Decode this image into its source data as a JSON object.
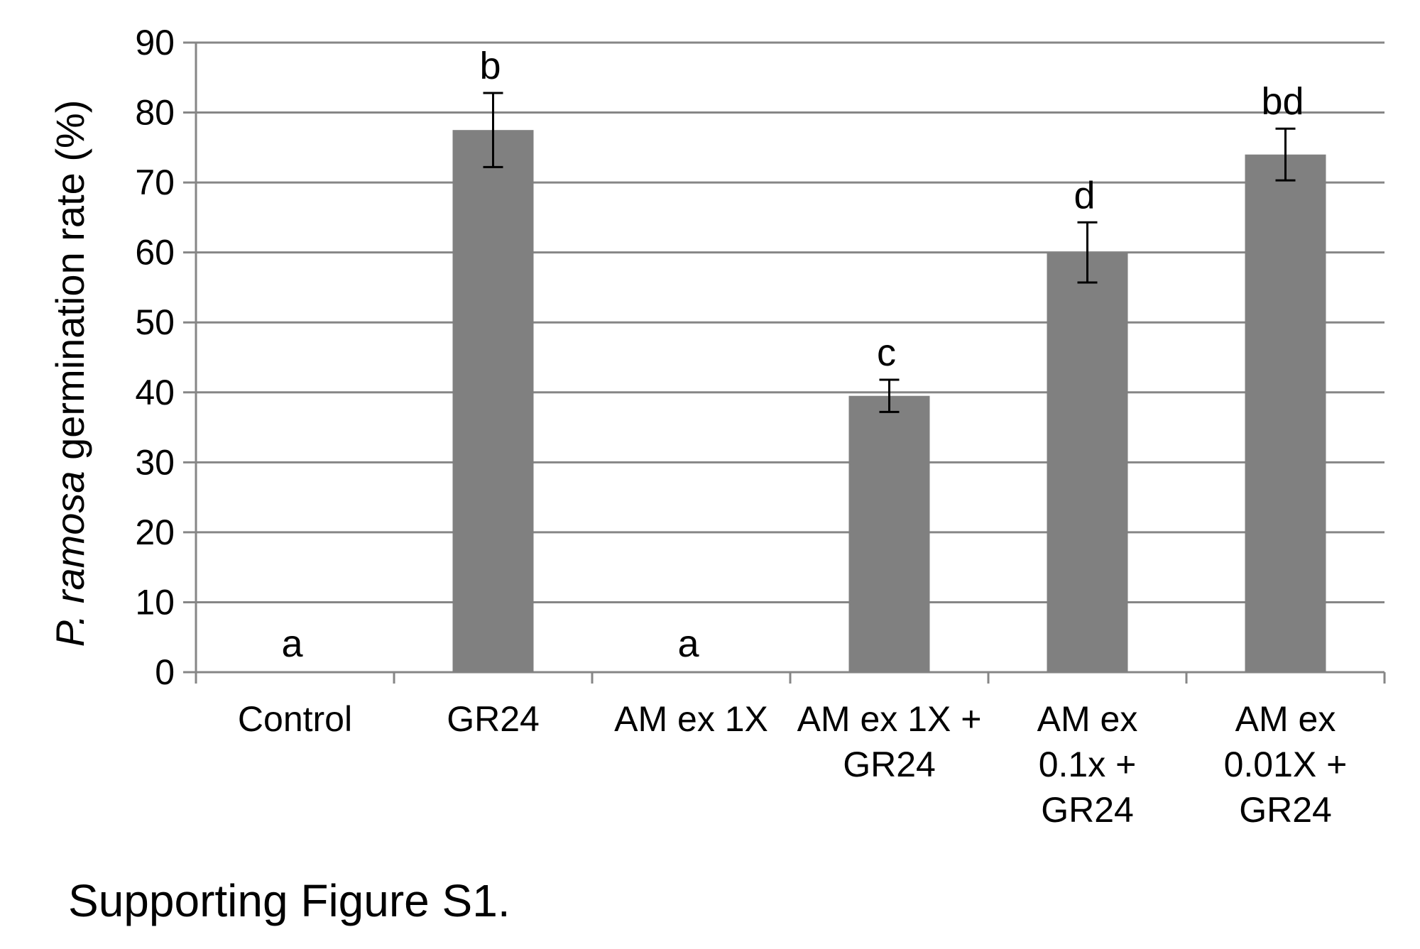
{
  "chart_data": {
    "type": "bar",
    "categories": [
      [
        "Control"
      ],
      [
        "GR24"
      ],
      [
        "AM ex 1X"
      ],
      [
        "AM ex 1X +",
        "GR24"
      ],
      [
        "AM ex",
        "0.1x +",
        "GR24"
      ],
      [
        "AM ex",
        "0.01X  +",
        "GR24"
      ]
    ],
    "values": [
      0,
      77.5,
      0,
      39.5,
      60,
      74
    ],
    "errors": [
      0,
      5.3,
      0,
      2.3,
      4.3,
      3.7
    ],
    "significance_labels": [
      "a",
      "b",
      "a",
      "c",
      "d",
      "bd"
    ],
    "ylabel": {
      "italic": "P. ramosa",
      "rest": " germination rate (%)"
    },
    "ylim": [
      0,
      90
    ],
    "yticks": [
      0,
      10,
      20,
      30,
      40,
      50,
      60,
      70,
      80,
      90
    ],
    "grid": true,
    "bar_color": "#808080",
    "grid_color": "#868686"
  },
  "caption": "Supporting Figure S1."
}
